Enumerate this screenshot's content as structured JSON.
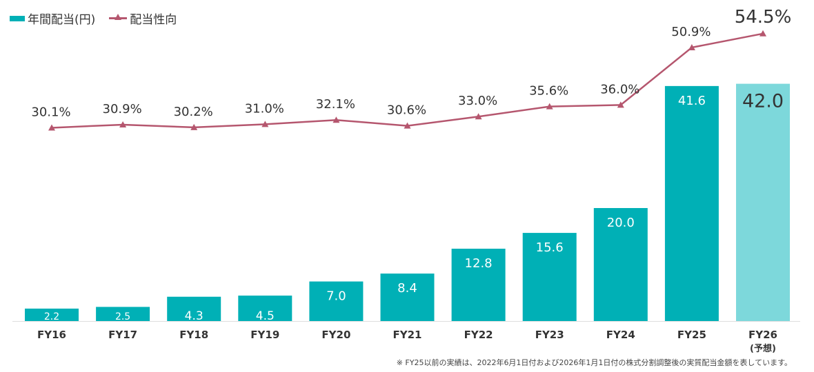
{
  "legend": {
    "bar_label": "年間配当(円)",
    "line_label": "配当性向"
  },
  "footnote": "※ FY25以前の実績は、2022年6月1日付および2026年1月1日付の株式分割調整後の実質配当金額を表しています。",
  "colors": {
    "bar": "#00B0B6",
    "bar_forecast": "#7DD8DB",
    "line": "#B5566E",
    "axis": "#DDDDDD",
    "bar_label_text": "#ffffff",
    "forecast_label_text": "#333333"
  },
  "chart_data": {
    "type": "bar",
    "categories": [
      "FY16",
      "FY17",
      "FY18",
      "FY19",
      "FY20",
      "FY21",
      "FY22",
      "FY23",
      "FY24",
      "FY25",
      "FY26"
    ],
    "category_sublabels": [
      "",
      "",
      "",
      "",
      "",
      "",
      "",
      "",
      "",
      "",
      "(予想)"
    ],
    "series": [
      {
        "name": "年間配当(円)",
        "type": "bar",
        "values": [
          2.2,
          2.5,
          4.3,
          4.5,
          7.0,
          8.4,
          12.8,
          15.6,
          20.0,
          41.6,
          42.0
        ],
        "labels": [
          "2.2",
          "2.5",
          "4.3",
          "4.5",
          "7.0",
          "8.4",
          "12.8",
          "15.6",
          "20.0",
          "41.6",
          "42.0"
        ],
        "forecast_index": 10
      },
      {
        "name": "配当性向",
        "type": "line",
        "marker": "triangle",
        "values": [
          30.1,
          30.9,
          30.2,
          31.0,
          32.1,
          30.6,
          33.0,
          35.6,
          36.0,
          50.9,
          54.5
        ],
        "labels": [
          "30.1%",
          "30.9%",
          "30.2%",
          "31.0%",
          "32.1%",
          "30.6%",
          "33.0%",
          "35.6%",
          "36.0%",
          "50.9%",
          "54.5%"
        ]
      }
    ],
    "legend_position": "top-left",
    "grid": false
  }
}
